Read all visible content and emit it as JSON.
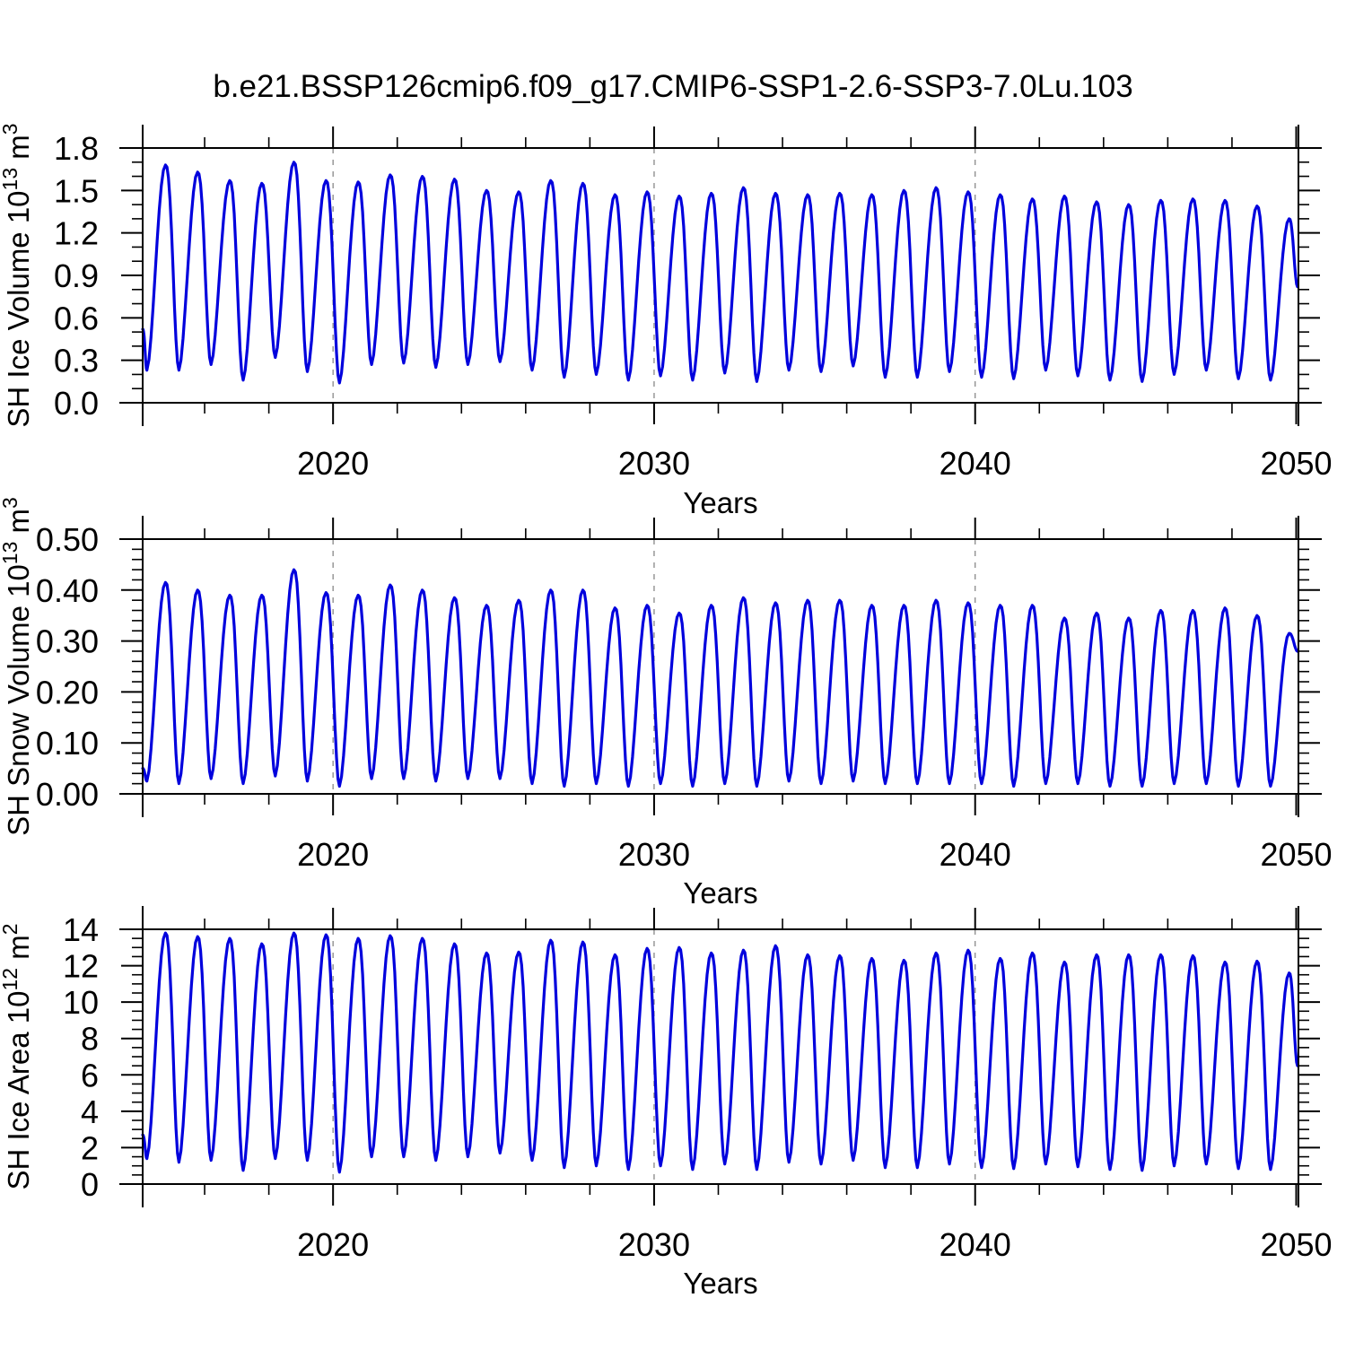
{
  "title": "b.e21.BSSP126cmip6.f09_g17.CMIP6-SSP1-2.6-SSP3-7.0Lu.103",
  "line_color": "#0000dd",
  "gridline_color": "#888888",
  "axis_color": "#000000",
  "chart_data": [
    {
      "type": "line",
      "series_name": "SH Ice Volume",
      "ylabel_parts": [
        {
          "t": "SH Ice Volume 10"
        },
        {
          "t": "13",
          "sup": true
        },
        {
          "t": " m"
        },
        {
          "t": "3",
          "sup": true
        }
      ],
      "xlabel": "Years",
      "ylim": [
        0.0,
        1.8
      ],
      "ytick_values": [
        0.0,
        0.3,
        0.6,
        0.9,
        1.2,
        1.5,
        1.8
      ],
      "ytick_labels": [
        "0.0",
        "0.3",
        "0.6",
        "0.9",
        "1.2",
        "1.5",
        "1.8"
      ],
      "y_minor_step": 0.1,
      "xlim": [
        2014.07,
        2050.07
      ],
      "xtick_values": [
        2020,
        2030,
        2040,
        2050
      ],
      "xtick_labels": [
        "2020",
        "2030",
        "2040",
        "2050"
      ],
      "x_minor_step": 2,
      "gridlines_at": [
        2020,
        2030,
        2040
      ],
      "seasonal_cycle": {
        "years": [
          2014,
          2015,
          2016,
          2017,
          2018,
          2019,
          2020,
          2021,
          2022,
          2023,
          2024,
          2025,
          2026,
          2027,
          2028,
          2029,
          2030,
          2031,
          2032,
          2033,
          2034,
          2035,
          2036,
          2037,
          2038,
          2039,
          2040,
          2041,
          2042,
          2043,
          2044,
          2045,
          2046,
          2047,
          2048,
          2049
        ],
        "annual_max": [
          1.68,
          1.63,
          1.57,
          1.55,
          1.7,
          1.57,
          1.56,
          1.61,
          1.6,
          1.58,
          1.5,
          1.49,
          1.57,
          1.55,
          1.47,
          1.49,
          1.46,
          1.48,
          1.52,
          1.48,
          1.47,
          1.48,
          1.47,
          1.5,
          1.52,
          1.49,
          1.47,
          1.44,
          1.46,
          1.42,
          1.4,
          1.43,
          1.44,
          1.43,
          1.39,
          1.3
        ],
        "annual_min": [
          0.23,
          0.23,
          0.27,
          0.16,
          0.32,
          0.22,
          0.14,
          0.27,
          0.28,
          0.25,
          0.27,
          0.29,
          0.23,
          0.18,
          0.2,
          0.16,
          0.19,
          0.16,
          0.21,
          0.15,
          0.23,
          0.22,
          0.26,
          0.18,
          0.18,
          0.22,
          0.18,
          0.17,
          0.23,
          0.19,
          0.16,
          0.15,
          0.2,
          0.23,
          0.17,
          0.16
        ],
        "min_phase": 0.2,
        "max_phase": 0.78,
        "start": {
          "x": 2014.07,
          "value": 0.52
        },
        "end": {
          "x": 2050.04,
          "value": 0.82
        }
      }
    },
    {
      "type": "line",
      "series_name": "SH Snow Volume",
      "ylabel_parts": [
        {
          "t": "SH Snow Volume 10"
        },
        {
          "t": "13",
          "sup": true
        },
        {
          "t": " m"
        },
        {
          "t": "3",
          "sup": true
        }
      ],
      "xlabel": "Years",
      "ylim": [
        0.0,
        0.5
      ],
      "ytick_values": [
        0.0,
        0.1,
        0.2,
        0.3,
        0.4,
        0.5
      ],
      "ytick_labels": [
        "0.00",
        "0.10",
        "0.20",
        "0.30",
        "0.40",
        "0.50"
      ],
      "y_minor_step": 0.02,
      "xlim": [
        2014.07,
        2050.07
      ],
      "xtick_values": [
        2020,
        2030,
        2040,
        2050
      ],
      "xtick_labels": [
        "2020",
        "2030",
        "2040",
        "2050"
      ],
      "x_minor_step": 2,
      "gridlines_at": [
        2020,
        2030,
        2040
      ],
      "seasonal_cycle": {
        "years": [
          2014,
          2015,
          2016,
          2017,
          2018,
          2019,
          2020,
          2021,
          2022,
          2023,
          2024,
          2025,
          2026,
          2027,
          2028,
          2029,
          2030,
          2031,
          2032,
          2033,
          2034,
          2035,
          2036,
          2037,
          2038,
          2039,
          2040,
          2041,
          2042,
          2043,
          2044,
          2045,
          2046,
          2047,
          2048,
          2049
        ],
        "annual_max": [
          0.415,
          0.4,
          0.39,
          0.39,
          0.44,
          0.395,
          0.39,
          0.41,
          0.4,
          0.385,
          0.37,
          0.38,
          0.4,
          0.4,
          0.365,
          0.37,
          0.355,
          0.37,
          0.385,
          0.375,
          0.38,
          0.38,
          0.37,
          0.37,
          0.38,
          0.375,
          0.37,
          0.37,
          0.345,
          0.355,
          0.345,
          0.36,
          0.36,
          0.365,
          0.35,
          0.315
        ],
        "annual_min": [
          0.025,
          0.02,
          0.03,
          0.02,
          0.035,
          0.025,
          0.015,
          0.03,
          0.03,
          0.025,
          0.03,
          0.03,
          0.02,
          0.015,
          0.02,
          0.015,
          0.02,
          0.015,
          0.02,
          0.015,
          0.025,
          0.02,
          0.025,
          0.02,
          0.02,
          0.02,
          0.02,
          0.015,
          0.02,
          0.02,
          0.015,
          0.015,
          0.02,
          0.02,
          0.015,
          0.015
        ],
        "min_phase": 0.2,
        "max_phase": 0.78,
        "start": {
          "x": 2014.07,
          "value": 0.05
        },
        "end": {
          "x": 2050.04,
          "value": 0.28
        }
      }
    },
    {
      "type": "line",
      "series_name": "SH Ice Area",
      "ylabel_parts": [
        {
          "t": "SH Ice Area 10"
        },
        {
          "t": "12",
          "sup": true
        },
        {
          "t": " m"
        },
        {
          "t": "2",
          "sup": true
        }
      ],
      "xlabel": "Years",
      "ylim": [
        0,
        14
      ],
      "ytick_values": [
        0,
        2,
        4,
        6,
        8,
        10,
        12,
        14
      ],
      "ytick_labels": [
        "0",
        "2",
        "4",
        "6",
        "8",
        "10",
        "12",
        "14"
      ],
      "y_minor_step": 0.5,
      "xlim": [
        2014.07,
        2050.07
      ],
      "xtick_values": [
        2020,
        2030,
        2040,
        2050
      ],
      "xtick_labels": [
        "2020",
        "2030",
        "2040",
        "2050"
      ],
      "x_minor_step": 2,
      "gridlines_at": [
        2020,
        2030,
        2040
      ],
      "seasonal_cycle": {
        "years": [
          2014,
          2015,
          2016,
          2017,
          2018,
          2019,
          2020,
          2021,
          2022,
          2023,
          2024,
          2025,
          2026,
          2027,
          2028,
          2029,
          2030,
          2031,
          2032,
          2033,
          2034,
          2035,
          2036,
          2037,
          2038,
          2039,
          2040,
          2041,
          2042,
          2043,
          2044,
          2045,
          2046,
          2047,
          2048,
          2049
        ],
        "annual_max": [
          13.8,
          13.6,
          13.5,
          13.2,
          13.8,
          13.7,
          13.5,
          13.65,
          13.5,
          13.2,
          12.7,
          12.75,
          13.4,
          13.3,
          12.6,
          12.95,
          13.0,
          12.7,
          12.85,
          13.1,
          12.6,
          12.55,
          12.4,
          12.3,
          12.7,
          12.85,
          12.4,
          12.7,
          12.2,
          12.6,
          12.6,
          12.6,
          12.55,
          12.2,
          12.25,
          11.6
        ],
        "annual_min": [
          1.4,
          1.2,
          1.3,
          0.75,
          1.4,
          1.3,
          0.65,
          1.5,
          1.5,
          1.3,
          1.5,
          1.7,
          1.3,
          0.9,
          1.0,
          0.8,
          1.0,
          0.8,
          1.1,
          0.8,
          1.2,
          1.1,
          1.3,
          0.9,
          0.9,
          1.1,
          0.9,
          0.85,
          1.1,
          0.95,
          0.8,
          0.75,
          1.0,
          1.1,
          0.85,
          0.8
        ],
        "min_phase": 0.2,
        "max_phase": 0.78,
        "start": {
          "x": 2014.07,
          "value": 2.7
        },
        "end": {
          "x": 2050.04,
          "value": 6.5
        }
      }
    }
  ]
}
